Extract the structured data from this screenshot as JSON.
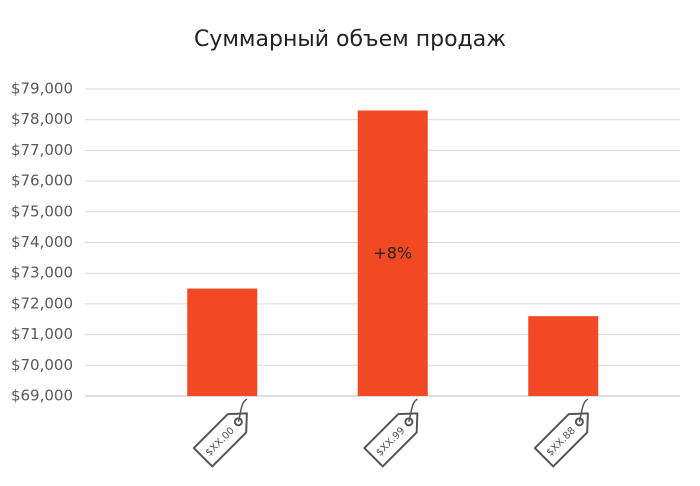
{
  "chart_data": {
    "type": "bar",
    "title": "Суммарный объем продаж",
    "categories": [
      "$XX.00",
      "$XX.99",
      "$XX.88"
    ],
    "values": [
      72500,
      78300,
      71600
    ],
    "color": "#f04923",
    "ylim": [
      69000,
      79000
    ],
    "yticks": [
      {
        "value": 69000,
        "label": "$69,000"
      },
      {
        "value": 70000,
        "label": "$70,000"
      },
      {
        "value": 71000,
        "label": "$71,000"
      },
      {
        "value": 72000,
        "label": "$72,000"
      },
      {
        "value": 73000,
        "label": "$73,000"
      },
      {
        "value": 74000,
        "label": "$74,000"
      },
      {
        "value": 75000,
        "label": "$75,000"
      },
      {
        "value": 76000,
        "label": "$76,000"
      },
      {
        "value": 77000,
        "label": "$77,000"
      },
      {
        "value": 78000,
        "label": "$78,000"
      },
      {
        "value": 79000,
        "label": "$79,000"
      }
    ],
    "grid": true,
    "annotations": [
      {
        "text": "+8%",
        "category": 1
      }
    ]
  }
}
